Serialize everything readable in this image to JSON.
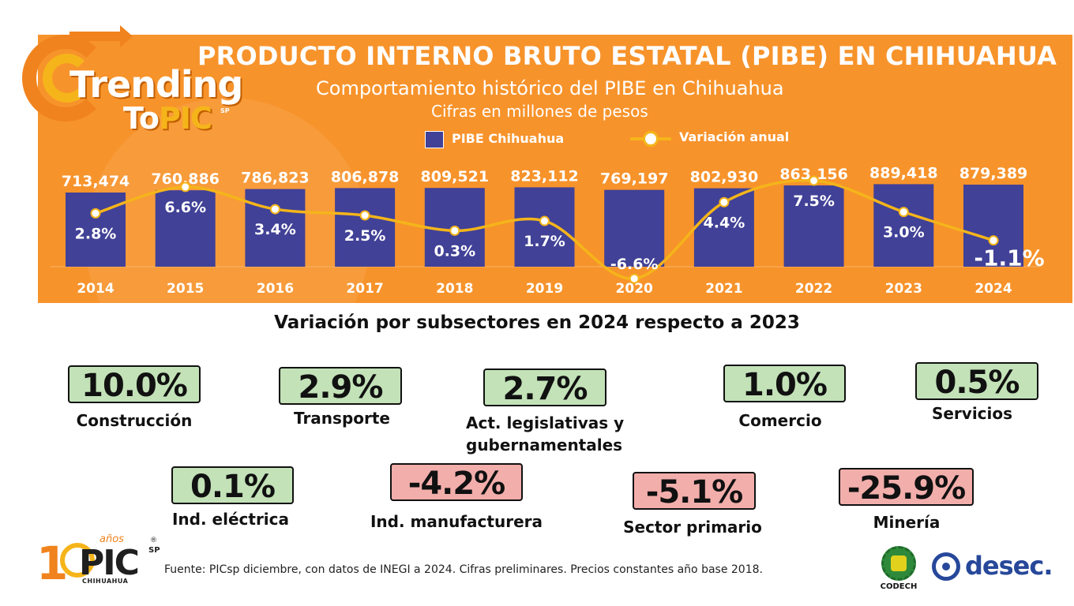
{
  "header": {
    "brand_line1": "Trending",
    "brand_line2_a": "To",
    "brand_line2_b": "PIC",
    "brand_sp": "SP",
    "title": "PRODUCTO INTERNO BRUTO ESTATAL (PIBE) EN CHIHUAHUA",
    "subtitle": "Comportamiento histórico del PIBE en Chihuahua",
    "subtitle2": "Cifras en millones de pesos",
    "legend_bar": "PIBE Chihuahua",
    "legend_line": "Variación anual"
  },
  "colors": {
    "banner": "#f7932b",
    "bar": "#414197",
    "line": "#f5b51a",
    "positive_box": "#c3e2b8",
    "negative_box": "#f2aeab",
    "logo_blue": "#27489a"
  },
  "chart_data": {
    "type": "bar",
    "categories": [
      "2014",
      "2015",
      "2016",
      "2017",
      "2018",
      "2019",
      "2020",
      "2021",
      "2022",
      "2023",
      "2024"
    ],
    "series": [
      {
        "name": "PIBE Chihuahua",
        "type": "bar",
        "values": [
          713474,
          760886,
          786823,
          806878,
          809521,
          823112,
          769197,
          802930,
          863156,
          889418,
          879389
        ],
        "labels": [
          "713,474",
          "760,886",
          "786,823",
          "806,878",
          "809,521",
          "823,112",
          "769,197",
          "802,930",
          "863,156",
          "889,418",
          "879,389"
        ]
      },
      {
        "name": "Variación anual",
        "type": "line",
        "values": [
          2.8,
          6.6,
          3.4,
          2.5,
          0.3,
          1.7,
          -6.6,
          4.4,
          7.5,
          3.0,
          -1.1
        ],
        "labels": [
          "2.8%",
          "6.6%",
          "3.4%",
          "2.5%",
          "0.3%",
          "1.7%",
          "-6.6%",
          "4.4%",
          "7.5%",
          "3.0%",
          "-1.1%"
        ]
      }
    ],
    "title": "PRODUCTO INTERNO BRUTO ESTATAL (PIBE) EN CHIHUAHUA",
    "subtitle": "Comportamiento histórico del PIBE en Chihuahua",
    "ylabel": "",
    "xlabel": ""
  },
  "section": {
    "title": "Variación por subsectores en 2024 respecto a 2023"
  },
  "subsectors": [
    {
      "value": "10.0%",
      "label": "Construcción",
      "sign": "pos"
    },
    {
      "value": "2.9%",
      "label": "Transporte",
      "sign": "pos"
    },
    {
      "value": "2.7%",
      "label": "Act. legislativas y",
      "label2": "gubernamentales",
      "sign": "pos"
    },
    {
      "value": "1.0%",
      "label": "Comercio",
      "sign": "pos"
    },
    {
      "value": "0.5%",
      "label": "Servicios",
      "sign": "pos"
    },
    {
      "value": "0.1%",
      "label": "Ind. eléctrica",
      "sign": "pos"
    },
    {
      "value": "-4.2%",
      "label": "Ind. manufacturera",
      "sign": "neg"
    },
    {
      "value": "-5.1%",
      "label": "Sector primario",
      "sign": "neg"
    },
    {
      "value": "-25.9%",
      "label": "Minería",
      "sign": "neg"
    }
  ],
  "footer": {
    "source": "Fuente:  PICsp diciembre, con datos de INEGI a 2024. Cifras preliminares. Precios constantes año base 2018.",
    "logo_one": "1",
    "logo_pic": "PIC",
    "logo_anos": "años",
    "logo_sp": "SP",
    "logo_reg": "®",
    "logo_city": "CHIHUAHUA",
    "codech": "CODECH",
    "desec": "desec."
  }
}
